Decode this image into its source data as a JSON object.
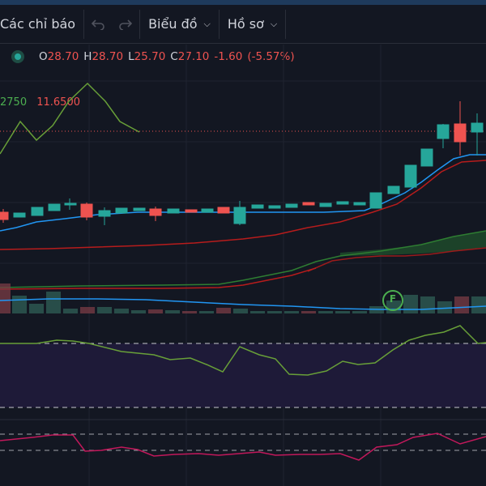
{
  "toolbar": {
    "indicators_label": "Các chỉ báo",
    "undo_icon": "undo-icon",
    "redo_icon": "redo-icon",
    "chart_menu_label": "Biểu đồ",
    "profile_menu_label": "Hồ sơ"
  },
  "legend": {
    "open_label": "O",
    "open": "28.70",
    "high_label": "H",
    "high": "28.70",
    "low_label": "L",
    "low": "25.70",
    "close_label": "C",
    "close": "27.10",
    "change": "-1.60",
    "change_pct": "(-5.57%)",
    "up_color": "#26a69a",
    "down_color": "#ef5350"
  },
  "indicator_legend": {
    "value1": "2750",
    "value2": "11.6500",
    "value1_color": "#4caf50",
    "value2_color": "#ef5350"
  },
  "marker": {
    "label": "F",
    "color": "#4caf50"
  }
}
